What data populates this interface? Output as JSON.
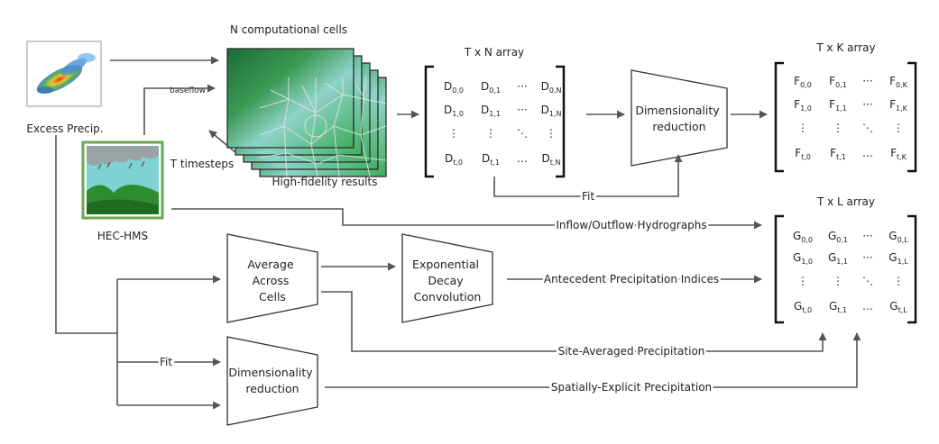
{
  "labels": {
    "excess_precip": "Excess Precip.",
    "n_cells": "N computational cells",
    "baseflow": "baseflow",
    "t_timesteps": "T timesteps",
    "high_fidelity": "High-fidelity results",
    "hec_hms": "HEC-HMS",
    "txn": "T x N array",
    "txk": "T x K array",
    "txl": "T x L array"
  },
  "boxes": {
    "dim_red_top": [
      "Dimensionality",
      "reduction"
    ],
    "average": [
      "Average",
      "Across",
      "Cells"
    ],
    "exp_decay": [
      "Exponential",
      "Decay",
      "Convolution"
    ],
    "dim_red_bottom": [
      "Dimensionality",
      "reduction"
    ]
  },
  "edges": {
    "fit_top": "Fit",
    "fit_left": "Fit",
    "inflow": "Inflow/Outflow Hydrographs",
    "antecedent": "Antecedent Precipitation Indices",
    "site_avg": "Site-Averaged Precipitation",
    "spatial": "Spatially-Explicit Precipitation"
  },
  "matrices": {
    "D": {
      "letter": "D",
      "rows": [
        [
          {
            "s": "0,0"
          },
          {
            "s": "0,1"
          },
          {
            "dots": "···"
          },
          {
            "s": "0,N"
          }
        ],
        [
          {
            "s": "1,0"
          },
          {
            "s": "1,1"
          },
          {
            "dots": "···"
          },
          {
            "s": "1,N"
          }
        ],
        [
          {
            "dots": "⋮"
          },
          {
            "dots": "⋮"
          },
          {
            "dots": "⋱"
          },
          {
            "dots": "⋮"
          }
        ],
        [
          {
            "s": "t,0"
          },
          {
            "s": "t,1"
          },
          {
            "dots": "…"
          },
          {
            "s": "t,N"
          }
        ]
      ]
    },
    "F": {
      "letter": "F",
      "rows": [
        [
          {
            "s": "0,0"
          },
          {
            "s": "0,1"
          },
          {
            "dots": "···"
          },
          {
            "s": "0,K"
          }
        ],
        [
          {
            "s": "1,0"
          },
          {
            "s": "1,1"
          },
          {
            "dots": "···"
          },
          {
            "s": "1,K"
          }
        ],
        [
          {
            "dots": "⋮"
          },
          {
            "dots": "⋮"
          },
          {
            "dots": "⋱"
          },
          {
            "dots": "⋮"
          }
        ],
        [
          {
            "s": "t,0"
          },
          {
            "s": "t,1"
          },
          {
            "dots": "…"
          },
          {
            "s": "t,K"
          }
        ]
      ]
    },
    "G": {
      "letter": "G",
      "rows": [
        [
          {
            "s": "0,0"
          },
          {
            "s": "0,1"
          },
          {
            "dots": "···"
          },
          {
            "s": "0,L"
          }
        ],
        [
          {
            "s": "1,0"
          },
          {
            "s": "1,1"
          },
          {
            "dots": "···"
          },
          {
            "s": "1,L"
          }
        ],
        [
          {
            "dots": "⋮"
          },
          {
            "dots": "⋮"
          },
          {
            "dots": "⋱"
          },
          {
            "dots": "⋮"
          }
        ],
        [
          {
            "s": "t,0"
          },
          {
            "s": "t,1"
          },
          {
            "dots": "…"
          },
          {
            "s": "t,L"
          }
        ]
      ]
    }
  },
  "colors": {
    "edge": "#555555",
    "box_stroke": "#333333",
    "hms_border": "#6aa84f",
    "hms_sky": "#7fd3d3",
    "hms_green": "#2e8b2e"
  }
}
